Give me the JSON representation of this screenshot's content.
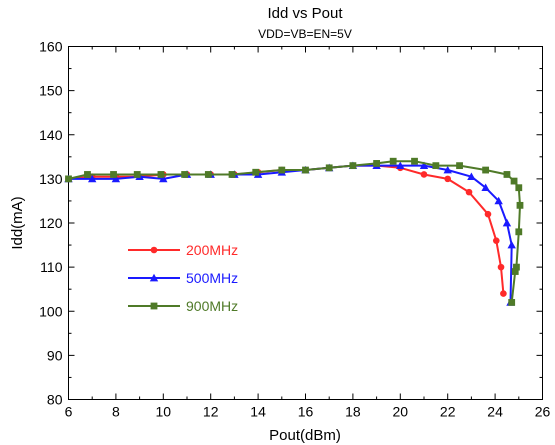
{
  "chart_data": {
    "type": "line",
    "title": "Idd vs Pout",
    "subtitle": "VDD=VB=EN=5V",
    "xlabel": "Pout(dBm)",
    "ylabel": "Idd(mA)",
    "xlim": [
      6,
      26
    ],
    "ylim": [
      80,
      160
    ],
    "xticks": [
      "6",
      "8",
      "10",
      "12",
      "14",
      "16",
      "18",
      "20",
      "22",
      "24",
      "26"
    ],
    "yticks": [
      "80",
      "90",
      "100",
      "110",
      "120",
      "130",
      "140",
      "150",
      "160"
    ],
    "grid": false,
    "legend_position": "lower-left",
    "series": [
      {
        "name": "200MHz",
        "color": "#ff2a2a",
        "marker": "circle",
        "x": [
          6.0,
          7.0,
          8.0,
          9.0,
          10.0,
          11.0,
          12.0,
          13.0,
          14.0,
          15.0,
          16.0,
          17.0,
          18.0,
          19.0,
          20.0,
          21.0,
          22.0,
          22.9,
          23.7,
          24.05,
          24.25,
          24.35
        ],
        "y": [
          130.0,
          130.5,
          130.5,
          130.5,
          131.0,
          131.0,
          131.0,
          131.0,
          131.5,
          132.0,
          132.0,
          132.5,
          133.0,
          133.0,
          132.5,
          131.0,
          130.0,
          127.0,
          122.0,
          116.0,
          110.0,
          104.0
        ]
      },
      {
        "name": "500MHz",
        "color": "#1a1aff",
        "marker": "triangle",
        "x": [
          6.0,
          7.0,
          8.0,
          9.0,
          10.0,
          11.0,
          12.0,
          13.0,
          14.0,
          15.0,
          16.0,
          17.0,
          18.0,
          19.0,
          20.0,
          21.0,
          22.0,
          23.0,
          23.6,
          24.15,
          24.5,
          24.7,
          24.65
        ],
        "y": [
          130.0,
          130.0,
          130.0,
          130.5,
          130.0,
          131.0,
          131.0,
          131.0,
          131.0,
          131.5,
          132.0,
          132.5,
          133.0,
          133.0,
          133.0,
          133.0,
          132.0,
          130.5,
          128.0,
          125.0,
          120.0,
          115.0,
          102.0
        ]
      },
      {
        "name": "900MHz",
        "color": "#4f7a28",
        "marker": "square",
        "x": [
          6.0,
          6.8,
          7.9,
          8.9,
          9.9,
          10.9,
          11.9,
          12.9,
          13.9,
          15.0,
          16.0,
          17.0,
          18.0,
          19.0,
          19.7,
          20.6,
          21.5,
          22.5,
          23.6,
          24.5,
          24.8,
          25.0,
          25.05,
          25.0,
          24.9,
          24.85,
          24.7
        ],
        "y": [
          130.0,
          131.0,
          131.0,
          131.0,
          131.0,
          131.0,
          131.0,
          131.0,
          131.5,
          132.0,
          132.0,
          132.5,
          133.0,
          133.5,
          134.0,
          134.0,
          133.0,
          133.0,
          132.0,
          131.0,
          129.5,
          128.0,
          124.0,
          118.0,
          110.0,
          109.0,
          102.0
        ]
      }
    ]
  }
}
